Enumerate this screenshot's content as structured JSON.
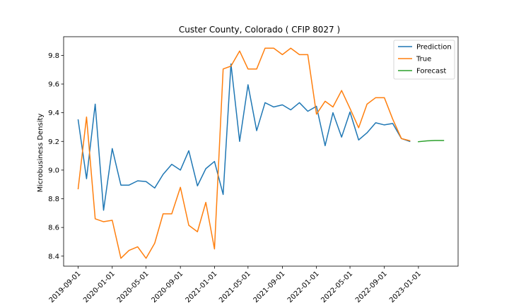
{
  "chart_data": {
    "type": "line",
    "title": "Custer County, Colorado ( CFIP 8027 )",
    "xlabel": "",
    "ylabel": "Microbusiness Density",
    "ylim": [
      8.33,
      9.93
    ],
    "xlim": [
      "2019-07-11",
      "2023-05-23"
    ],
    "yticks": [
      8.4,
      8.6,
      8.8,
      9.0,
      9.2,
      9.4,
      9.6,
      9.8
    ],
    "xticks": [
      "2019-09-01",
      "2020-01-01",
      "2020-05-01",
      "2020-09-01",
      "2021-01-01",
      "2021-05-01",
      "2021-09-01",
      "2022-01-01",
      "2022-05-01",
      "2022-09-01",
      "2023-01-01"
    ],
    "grid": false,
    "legend": "top-right",
    "series": [
      {
        "name": "Prediction",
        "color": "#1f77b4",
        "x": [
          "2019-09-01",
          "2019-10-01",
          "2019-11-01",
          "2019-12-01",
          "2020-01-01",
          "2020-02-01",
          "2020-03-01",
          "2020-04-01",
          "2020-05-01",
          "2020-06-01",
          "2020-07-01",
          "2020-08-01",
          "2020-09-01",
          "2020-10-01",
          "2020-11-01",
          "2020-12-01",
          "2021-01-01",
          "2021-02-01",
          "2021-03-01",
          "2021-04-01",
          "2021-05-01",
          "2021-06-01",
          "2021-07-01",
          "2021-08-01",
          "2021-09-01",
          "2021-10-01",
          "2021-11-01",
          "2021-12-01",
          "2022-01-01",
          "2022-02-01",
          "2022-03-01",
          "2022-04-01",
          "2022-05-01",
          "2022-06-01",
          "2022-07-01",
          "2022-08-01",
          "2022-09-01",
          "2022-10-01",
          "2022-11-01",
          "2022-12-01"
        ],
        "y": [
          9.35,
          8.94,
          9.46,
          8.72,
          9.15,
          8.895,
          8.895,
          8.925,
          8.92,
          8.875,
          8.97,
          9.04,
          9.0,
          9.135,
          8.89,
          9.01,
          9.06,
          8.83,
          9.74,
          9.2,
          9.595,
          9.275,
          9.47,
          9.44,
          9.455,
          9.42,
          9.47,
          9.41,
          9.445,
          9.17,
          9.4,
          9.23,
          9.405,
          9.21,
          9.26,
          9.33,
          9.315,
          9.325,
          9.22,
          9.2
        ]
      },
      {
        "name": "True",
        "color": "#ff7f0e",
        "x": [
          "2019-09-01",
          "2019-10-01",
          "2019-11-01",
          "2019-12-01",
          "2020-01-01",
          "2020-02-01",
          "2020-03-01",
          "2020-04-01",
          "2020-05-01",
          "2020-06-01",
          "2020-07-01",
          "2020-08-01",
          "2020-09-01",
          "2020-10-01",
          "2020-11-01",
          "2020-12-01",
          "2021-01-01",
          "2021-02-01",
          "2021-03-01",
          "2021-04-01",
          "2021-05-01",
          "2021-06-01",
          "2021-07-01",
          "2021-08-01",
          "2021-09-01",
          "2021-10-01",
          "2021-11-01",
          "2021-12-01",
          "2022-01-01",
          "2022-02-01",
          "2022-03-01",
          "2022-04-01",
          "2022-05-01",
          "2022-06-01",
          "2022-07-01",
          "2022-08-01",
          "2022-09-01",
          "2022-10-01",
          "2022-11-01",
          "2022-12-01"
        ],
        "y": [
          8.87,
          9.37,
          8.66,
          8.64,
          8.65,
          8.385,
          8.44,
          8.465,
          8.385,
          8.49,
          8.695,
          8.695,
          8.88,
          8.615,
          8.57,
          8.775,
          8.45,
          9.705,
          9.725,
          9.83,
          9.705,
          9.705,
          9.85,
          9.85,
          9.805,
          9.85,
          9.805,
          9.805,
          9.39,
          9.48,
          9.44,
          9.555,
          9.43,
          9.295,
          9.46,
          9.505,
          9.505,
          9.355,
          9.22,
          9.205
        ]
      },
      {
        "name": "Forecast",
        "color": "#2ca02c",
        "x": [
          "2023-01-01",
          "2023-02-01",
          "2023-03-01",
          "2023-04-01"
        ],
        "y": [
          9.198,
          9.204,
          9.206,
          9.206
        ]
      }
    ]
  }
}
